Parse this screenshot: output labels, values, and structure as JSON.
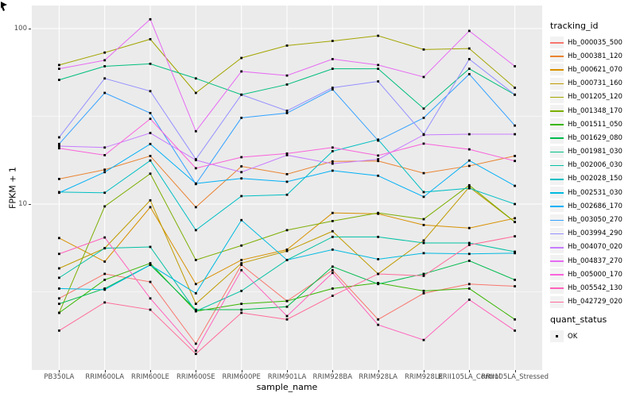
{
  "figure": {
    "x_axis_title": "sample_name",
    "y_axis_title": "FPKM + 1"
  },
  "legend": {
    "tracking_title": "tracking_id",
    "quant_title": "quant_status",
    "quant_items": [
      {
        "label": "OK",
        "marker": "black-square"
      }
    ]
  },
  "colors": {
    "panel_background": "#EBEBEB",
    "gridline": "#FFFFFF",
    "tick": "#333333",
    "tick_text": "#4d4d4d",
    "point": "#000000",
    "legend_key_background": "#F2F2F2"
  },
  "chart_data": {
    "type": "line",
    "title": "",
    "xlabel": "sample_name",
    "ylabel": "FPKM + 1",
    "y_scale": "log10",
    "ylim": [
      1.13,
      135
    ],
    "y_tick_values": [
      10,
      100
    ],
    "y_tick_labels": [
      "10",
      "100"
    ],
    "minor_gridlines_at": [
      3.162,
      31.62
    ],
    "major_gridlines_at": [
      10,
      100
    ],
    "grid": true,
    "legend_position": "right",
    "point_shape": "small-black-square",
    "categories": [
      "PB350LA",
      "RRIM600LA",
      "RRIM600LE",
      "RRIM600SE",
      "RRIM600PE",
      "RRIM901LA",
      "RRIM928BA",
      "RRIM928LA",
      "RRIM928LE",
      "RRII105LA_Control",
      "RRII105LA_Stressed"
    ],
    "series": [
      {
        "name": "Hb_000035_500",
        "color": "#F8766D",
        "values": [
          2.9,
          4.0,
          3.6,
          1.6,
          4.5,
          2.8,
          4.2,
          2.2,
          3.1,
          3.5,
          3.4
        ]
      },
      {
        "name": "Hb_000381_120",
        "color": "#EA8331",
        "values": [
          13.9,
          15.7,
          18.8,
          9.6,
          16.4,
          14.8,
          17.5,
          17.6,
          15.0,
          16.5,
          18.8
        ]
      },
      {
        "name": "Hb_000621_070",
        "color": "#D89000",
        "values": [
          6.4,
          4.7,
          9.6,
          3.5,
          4.8,
          5.5,
          8.9,
          8.8,
          7.6,
          7.3,
          8.3
        ]
      },
      {
        "name": "Hb_000731_160",
        "color": "#C09B00",
        "values": [
          4.3,
          5.6,
          10.5,
          2.7,
          4.6,
          5.4,
          7.0,
          4.0,
          6.2,
          12.5,
          7.9
        ]
      },
      {
        "name": "Hb_001205_120",
        "color": "#A3A500",
        "values": [
          62,
          73,
          87,
          43,
          68,
          80,
          85,
          91,
          76,
          77,
          46
        ]
      },
      {
        "name": "Hb_001348_170",
        "color": "#7CAE00",
        "values": [
          2.4,
          9.7,
          14.9,
          4.8,
          5.8,
          7.1,
          8.0,
          8.9,
          8.2,
          12.8,
          7.9
        ]
      },
      {
        "name": "Hb_001511_050",
        "color": "#39B600",
        "values": [
          2.4,
          3.7,
          4.6,
          2.45,
          2.7,
          2.8,
          3.3,
          3.55,
          3.2,
          3.3,
          2.2
        ]
      },
      {
        "name": "Hb_001629_080",
        "color": "#00BB4E",
        "values": [
          2.7,
          3.3,
          4.5,
          2.5,
          2.5,
          2.6,
          4.4,
          3.5,
          4.0,
          4.75,
          3.7
        ]
      },
      {
        "name": "Hb_001981_030",
        "color": "#00BF7D",
        "values": [
          51,
          61,
          63,
          52,
          42,
          48,
          59,
          59,
          35,
          59,
          42
        ]
      },
      {
        "name": "Hb_002006_030",
        "color": "#00C1A3",
        "values": [
          3.8,
          5.6,
          5.7,
          2.45,
          3.2,
          4.8,
          6.5,
          6.5,
          6.0,
          6.0,
          5.35
        ]
      },
      {
        "name": "Hb_002028_150",
        "color": "#00BFC4",
        "values": [
          11.7,
          11.6,
          17.7,
          7.1,
          11.1,
          11.3,
          20.0,
          23.3,
          11.7,
          12.3,
          10.0
        ]
      },
      {
        "name": "Hb_002531_030",
        "color": "#00BAE0",
        "values": [
          3.3,
          3.25,
          4.5,
          3.1,
          8.1,
          4.8,
          5.5,
          4.85,
          5.25,
          5.2,
          5.25
        ]
      },
      {
        "name": "Hb_002686_170",
        "color": "#00B0F6",
        "values": [
          11.6,
          15.2,
          22.0,
          13.1,
          14.0,
          13.4,
          15.5,
          14.5,
          11.0,
          17.7,
          12.7
        ]
      },
      {
        "name": "Hb_003050_270",
        "color": "#35A2FF",
        "values": [
          22,
          43,
          33,
          13,
          31,
          33,
          45,
          23,
          31,
          55,
          28
        ]
      },
      {
        "name": "Hb_003994_290",
        "color": "#9590FF",
        "values": [
          24,
          52,
          44,
          18,
          42,
          34,
          46,
          50,
          25,
          67,
          42
        ]
      },
      {
        "name": "Hb_004070_020",
        "color": "#C77CFF",
        "values": [
          21.4,
          21.0,
          25.4,
          17.8,
          15.2,
          19.0,
          17.0,
          18.0,
          24.8,
          25.0,
          25.0
        ]
      },
      {
        "name": "Hb_004837_270",
        "color": "#E76BF3",
        "values": [
          59,
          66,
          113,
          26,
          57,
          54,
          67,
          62,
          53,
          97,
          61
        ]
      },
      {
        "name": "Hb_005000_170",
        "color": "#FA62DB",
        "values": [
          20.8,
          19.0,
          30.6,
          16.0,
          18.5,
          19.4,
          21.0,
          18.9,
          22.1,
          20.5,
          17.6
        ]
      },
      {
        "name": "Hb_005542_130",
        "color": "#FF62BC",
        "values": [
          5.2,
          6.45,
          2.9,
          1.46,
          4.2,
          2.3,
          4.05,
          2.05,
          1.68,
          2.85,
          1.9
        ]
      },
      {
        "name": "Hb_042729_020",
        "color": "#FF6A98",
        "values": [
          1.9,
          2.75,
          2.5,
          1.4,
          2.4,
          2.2,
          3.0,
          4.0,
          3.9,
          5.85,
          6.55
        ]
      }
    ]
  }
}
